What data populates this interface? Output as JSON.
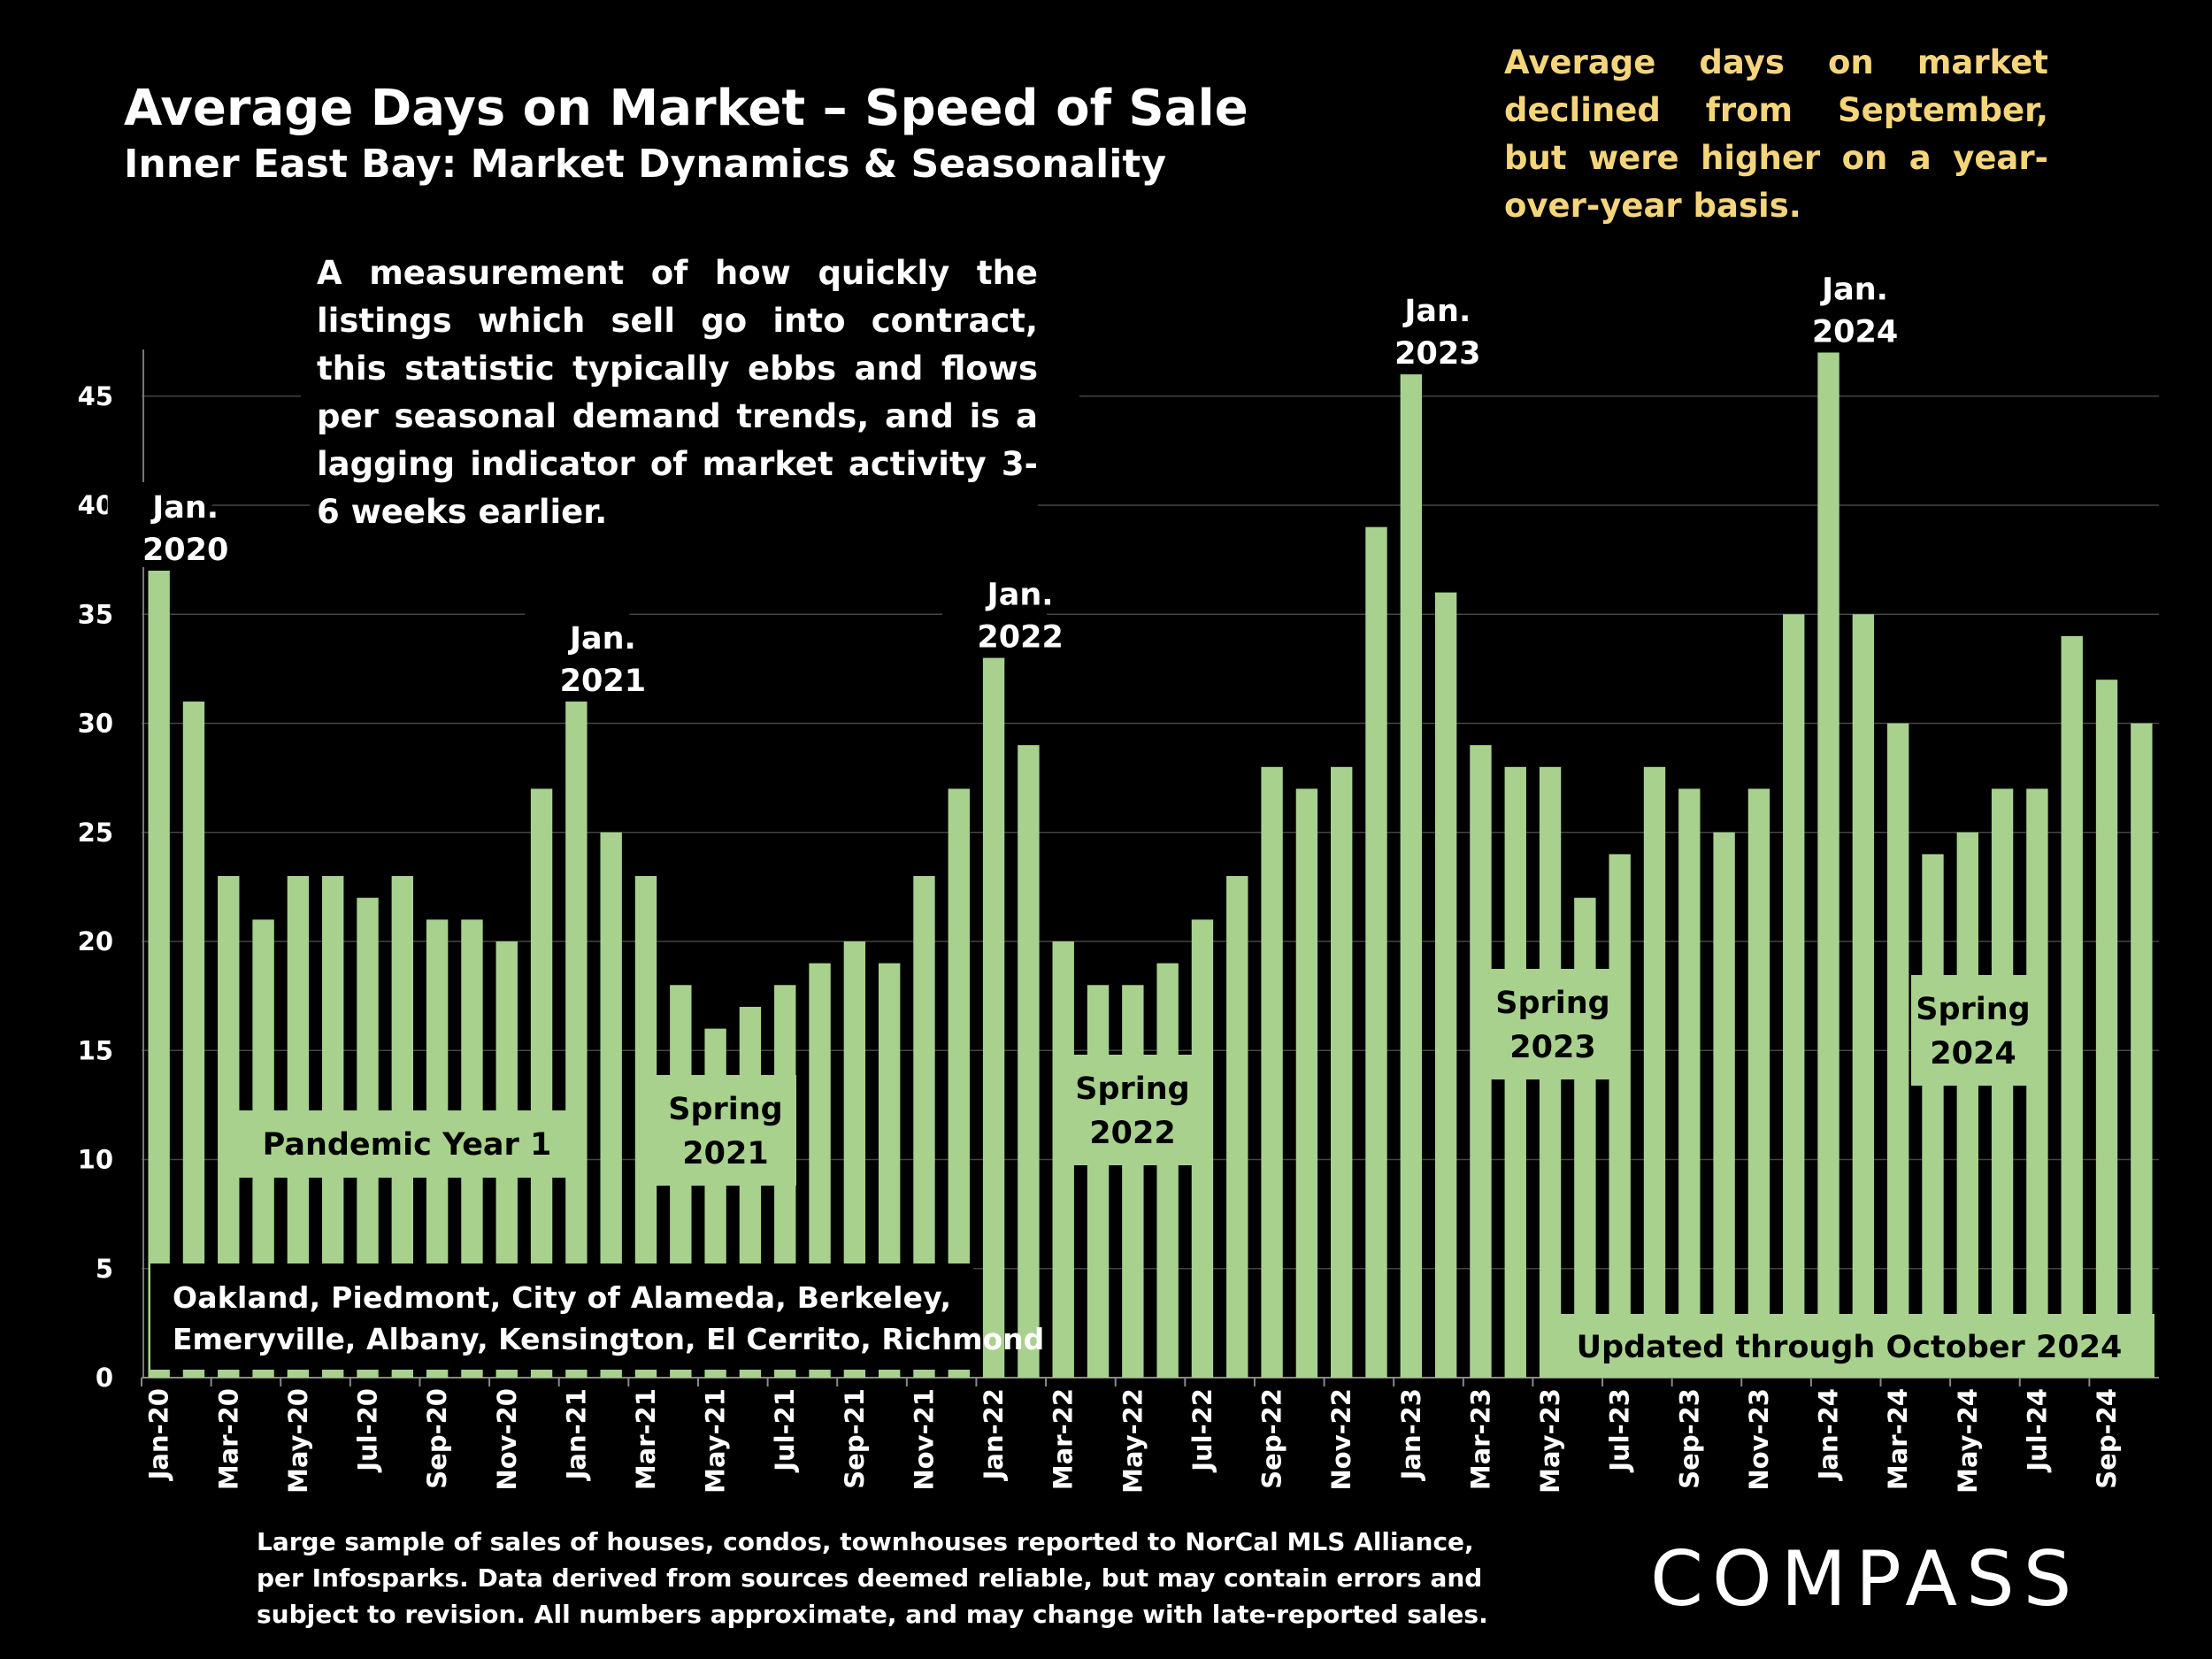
{
  "header": {
    "title": "Average Days on Market – Speed of Sale",
    "subtitle": "Inner East Bay: Market Dynamics & Seasonality",
    "takeaway": "Average days on market declined from September, but were higher on a year-over-year basis."
  },
  "description": "A measurement of how quickly the listings which sell go into contract, this statistic typically ebbs and flows per seasonal demand trends, and is a lagging indicator of market activity 3-6 weeks earlier.",
  "footnote": "Large sample of sales of houses, condos, townhouses reported to NorCal MLS Alliance, per Infosparks. Data derived from sources deemed reliable, but may contain errors and subject to revision. All numbers approximate, and may change with late-reported sales.",
  "logo": "COMPASS",
  "colors": {
    "bar": "#a9d18e",
    "background": "#000000",
    "takeaway": "#f5d57a",
    "grid": "#444444"
  },
  "chart_data": {
    "type": "bar",
    "title": "Average Days on Market – Speed of Sale",
    "ylim": [
      0,
      47
    ],
    "yticks": [
      0,
      5,
      10,
      15,
      20,
      25,
      30,
      35,
      40,
      45
    ],
    "grid": true,
    "categories": [
      "Jan-20",
      "Feb-20",
      "Mar-20",
      "Apr-20",
      "May-20",
      "Jun-20",
      "Jul-20",
      "Aug-20",
      "Sep-20",
      "Oct-20",
      "Nov-20",
      "Dec-20",
      "Jan-21",
      "Feb-21",
      "Mar-21",
      "Apr-21",
      "May-21",
      "Jun-21",
      "Jul-21",
      "Aug-21",
      "Sep-21",
      "Oct-21",
      "Nov-21",
      "Dec-21",
      "Jan-22",
      "Feb-22",
      "Mar-22",
      "Apr-22",
      "May-22",
      "Jun-22",
      "Jul-22",
      "Aug-22",
      "Sep-22",
      "Oct-22",
      "Nov-22",
      "Dec-22",
      "Jan-23",
      "Feb-23",
      "Mar-23",
      "Apr-23",
      "May-23",
      "Jun-23",
      "Jul-23",
      "Aug-23",
      "Sep-23",
      "Oct-23",
      "Nov-23",
      "Dec-23",
      "Jan-24",
      "Feb-24",
      "Mar-24",
      "Apr-24",
      "May-24",
      "Jun-24",
      "Jul-24",
      "Aug-24",
      "Sep-24",
      "Oct-24"
    ],
    "xtick_labels": [
      "Jan-20",
      "Mar-20",
      "May-20",
      "Jul-20",
      "Sep-20",
      "Nov-20",
      "Jan-21",
      "Mar-21",
      "May-21",
      "Jul-21",
      "Sep-21",
      "Nov-21",
      "Jan-22",
      "Mar-22",
      "May-22",
      "Jul-22",
      "Sep-22",
      "Nov-22",
      "Jan-23",
      "Mar-23",
      "May-23",
      "Jul-23",
      "Sep-23",
      "Nov-23",
      "Jan-24",
      "Mar-24",
      "May-24",
      "Jul-24",
      "Sep-24"
    ],
    "values": [
      37,
      31,
      23,
      21,
      23,
      23,
      22,
      23,
      21,
      21,
      20,
      27,
      31,
      25,
      23,
      18,
      16,
      17,
      18,
      19,
      20,
      19,
      23,
      27,
      33,
      29,
      20,
      18,
      18,
      19,
      21,
      23,
      28,
      27,
      28,
      39,
      46,
      36,
      29,
      28,
      28,
      22,
      24,
      28,
      27,
      25,
      27,
      35,
      47,
      35,
      30,
      24,
      25,
      27,
      27,
      34,
      32,
      30
    ],
    "peak_labels": [
      {
        "line1": "Jan.",
        "line2": "2020",
        "index": 0
      },
      {
        "line1": "Jan.",
        "line2": "2021",
        "index": 12
      },
      {
        "line1": "Jan.",
        "line2": "2022",
        "index": 24
      },
      {
        "line1": "Jan.",
        "line2": "2023",
        "index": 36
      },
      {
        "line1": "Jan.",
        "line2": "2024",
        "index": 48
      }
    ],
    "period_labels": [
      {
        "line1": "Pandemic Year 1",
        "line2": ""
      },
      {
        "line1": "Spring",
        "line2": "2021"
      },
      {
        "line1": "Spring",
        "line2": "2022"
      },
      {
        "line1": "Spring",
        "line2": "2023"
      },
      {
        "line1": "Spring",
        "line2": "2024"
      }
    ],
    "region_note": [
      "Oakland, Piedmont, City of Alameda, Berkeley,",
      "Emeryville, Albany, Kensington, El Cerrito, Richmond"
    ],
    "updated_note": "Updated through October 2024"
  }
}
